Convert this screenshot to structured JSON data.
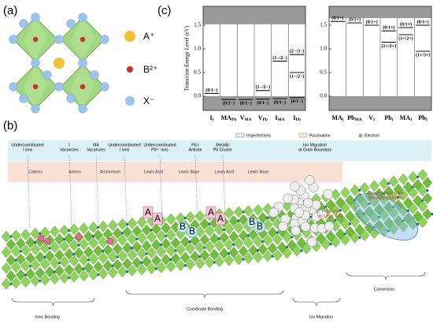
{
  "panel_a": {
    "label": "(a)",
    "legend": [
      "A⁺",
      "B²⁺",
      "X⁻"
    ]
  },
  "panel_b": {
    "label": "(b)",
    "legend": [
      "Imperfections",
      "Passivation",
      "Electron"
    ],
    "imperfections": [
      [
        "Undercoordinated",
        "I ions"
      ],
      [
        "I",
        "Vacancies"
      ],
      [
        "MA",
        "Vacancies"
      ],
      [
        "Undercoordinated",
        "I ions"
      ],
      [
        "Undercoordinated",
        "Pb²⁺ ions"
      ],
      [
        "Pb-I",
        "Antisite"
      ],
      [
        "Metallic",
        "Pb Cluster"
      ],
      [
        "Ion Migration",
        "at Grain Boundary"
      ]
    ],
    "passivation": [
      [
        "Cations"
      ],
      [
        "Anions"
      ],
      [
        "Ammonium"
      ],
      [
        "Lewis Acid"
      ],
      [
        "Lewis Base"
      ],
      [
        "Lewis Acid"
      ],
      [
        "Lewis Base"
      ],
      [
        "Fullerene",
        "as Lewis Acid"
      ],
      [
        "Conversion to Wide",
        "Bandgap Materials"
      ]
    ],
    "acid_marker": "A",
    "base_marker": "B",
    "mechanisms": [
      "Ionic Bonding",
      "Coordinate Bonding",
      "Ion Migration",
      "Conversion"
    ]
  },
  "panel_c": {
    "label": "(c)"
  },
  "chart_data": [
    {
      "type": "level",
      "ylabel": "Transition Energy Level (eV)",
      "ylim": [
        -0.3,
        1.9
      ],
      "yticks": [
        {
          "value": 0,
          "label": "0.0"
        },
        0.5,
        {
          "value": 1,
          "label": "1.0"
        },
        1.5
      ],
      "vbm": 0,
      "cbm": 1.52,
      "defects": [
        {
          "category": {
            "base": "I",
            "sub": "i"
          },
          "levels": [
            {
              "label": "(0/1−)",
              "value": 0.06
            }
          ]
        },
        {
          "category": {
            "base": "MA",
            "sub": "Pb"
          },
          "levels": [
            {
              "label": "(0/1−)",
              "value": -0.07
            }
          ]
        },
        {
          "category": {
            "base": "V",
            "sub": "MA"
          },
          "levels": [
            {
              "label": "(0/1−)",
              "value": -0.07
            }
          ]
        },
        {
          "category": {
            "base": "V",
            "sub": "Pb"
          },
          "levels": [
            {
              "label": "(1−/2−)",
              "value": 0.12
            },
            {
              "label": "(0/1−)",
              "value": -0.06
            }
          ]
        },
        {
          "category": {
            "base": "I",
            "sub": "MA"
          },
          "levels": [
            {
              "label": "(1−/2−)",
              "value": 0.74
            },
            {
              "label": "(0/1−)",
              "value": -0.05
            }
          ]
        },
        {
          "category": {
            "base": "I",
            "sub": "Pb"
          },
          "levels": [
            {
              "label": "(2−/3−)",
              "value": 0.88
            },
            {
              "label": "(1−/2−)",
              "value": 0.5
            },
            {
              "label": "(0/1−)",
              "value": -0.03
            }
          ]
        }
      ]
    },
    {
      "type": "level",
      "ylim": [
        -0.3,
        1.9
      ],
      "yticks": [
        {
          "value": 0,
          "label": "0.0"
        },
        0.5,
        {
          "value": 1,
          "label": "1.0"
        },
        1.5
      ],
      "vbm": 0,
      "cbm": 1.65,
      "defects": [
        {
          "category": {
            "base": "MA",
            "sub": "i"
          },
          "levels": [
            {
              "label": "(0/1+)",
              "value": 1.58
            }
          ]
        },
        {
          "category": {
            "base": "Pb",
            "sub": "MA"
          },
          "levels": [
            {
              "label": "(0/1+)",
              "value": 1.55
            }
          ]
        },
        {
          "category": {
            "base": "V",
            "sub": "I"
          },
          "levels": [
            {
              "label": "(0/1+)",
              "value": 1.5
            }
          ]
        },
        {
          "category": {
            "base": "Pb",
            "sub": "i"
          },
          "levels": [
            {
              "label": "(0/1+)",
              "value": 1.38
            },
            {
              "label": "(1+/2+)",
              "value": 1.14
            }
          ]
        },
        {
          "category": {
            "base": "MA",
            "sub": "I"
          },
          "levels": [
            {
              "label": "(0/1+)",
              "value": 1.45
            },
            {
              "label": "(1+/2+)",
              "value": 1.3
            }
          ]
        },
        {
          "category": {
            "base": "Pb",
            "sub": "I"
          },
          "levels": [
            {
              "label": "(0/1+)",
              "value": 1.5
            },
            {
              "label": "(1+/3+)",
              "value": 0.95
            }
          ]
        }
      ]
    }
  ]
}
